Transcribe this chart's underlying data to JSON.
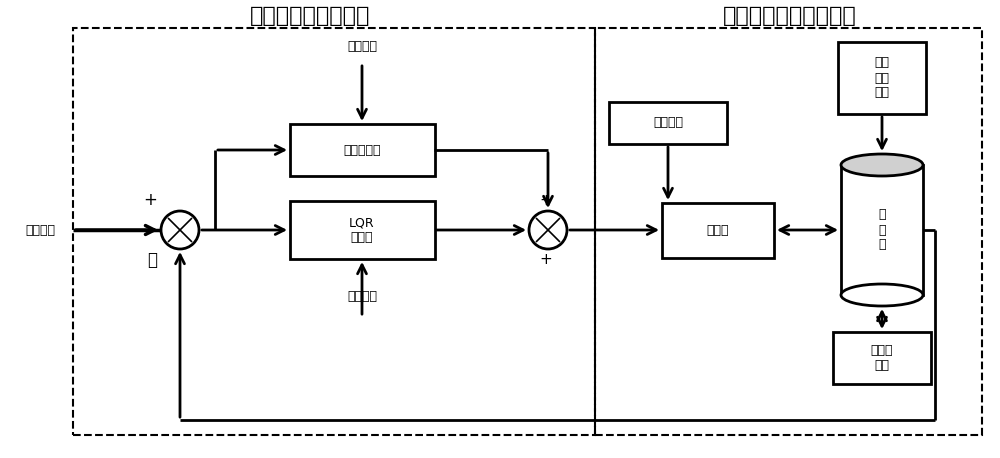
{
  "bg_color": "#ffffff",
  "title_left": "隔水管反冲控制系统",
  "title_right": "隔水管反冲动力学系统",
  "label_ctrl_target": "控制目标",
  "label_feedforward": "前馈控制器",
  "label_lqr": "LQR\n控制器",
  "label_prior": "先验条件",
  "label_constraint": "约束条件",
  "label_tensioner": "张紧器",
  "label_riser": "隔\n水\n管",
  "label_platform": "浮式平台",
  "label_ocean": "海洋\n环境\n载荷",
  "label_drilling": "钻井液\n下泄",
  "plus": "+",
  "minus": "－"
}
